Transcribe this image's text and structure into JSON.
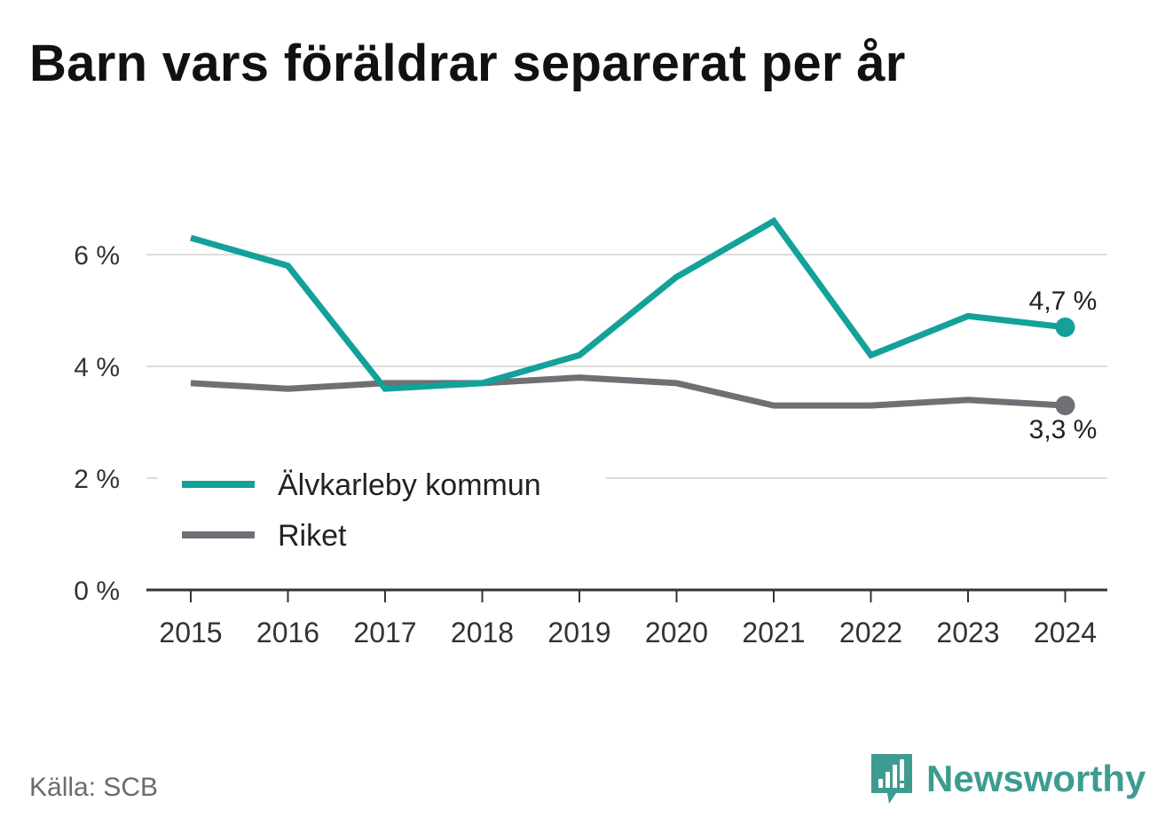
{
  "title": "Barn vars föräldrar separerat per år",
  "source": "Källa: SCB",
  "brand": {
    "name": "Newsworthy",
    "icon": "newsworthy-logo-icon",
    "color": "#3d9c8f"
  },
  "colors": {
    "kommun": "#13a19a",
    "riket": "#706f75",
    "grid": "#dcdcdc",
    "axis": "#333333"
  },
  "chart_data": {
    "type": "line",
    "title": "Barn vars föräldrar separerat per år",
    "x": [
      "2015",
      "2016",
      "2017",
      "2018",
      "2019",
      "2020",
      "2021",
      "2022",
      "2023",
      "2024"
    ],
    "ylim": [
      0,
      7
    ],
    "yticks": [
      0,
      2,
      4,
      6
    ],
    "ytick_labels": [
      "0 %",
      "2 %",
      "4 %",
      "6 %"
    ],
    "grid": true,
    "legend_position": "bottom-left",
    "series": [
      {
        "name": "Älvkarleby kommun",
        "color": "#13a19a",
        "values": [
          6.3,
          5.8,
          3.6,
          3.7,
          4.2,
          5.6,
          6.6,
          4.2,
          4.9,
          4.7
        ],
        "end_label": "4,7 %"
      },
      {
        "name": "Riket",
        "color": "#706f75",
        "values": [
          3.7,
          3.6,
          3.7,
          3.7,
          3.8,
          3.7,
          3.3,
          3.3,
          3.4,
          3.3
        ],
        "end_label": "3,3 %"
      }
    ]
  }
}
